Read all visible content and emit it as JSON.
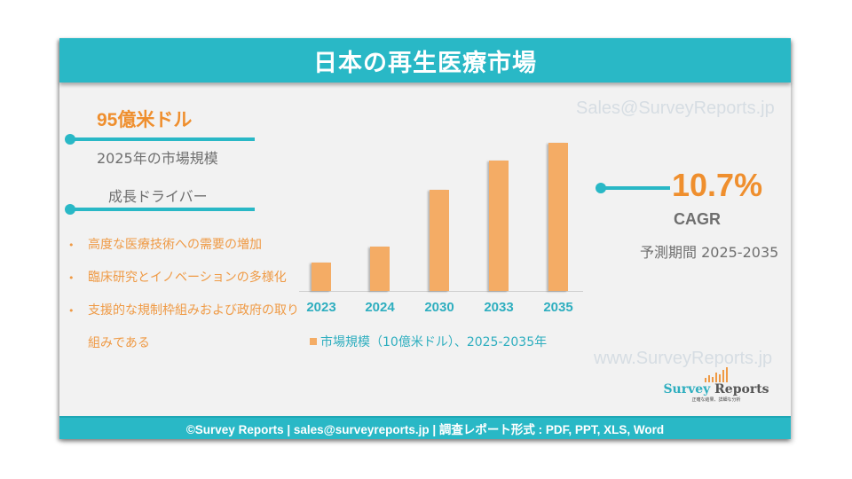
{
  "header": {
    "title": "日本の再生医療市場"
  },
  "watermarks": {
    "email": "Sales@SurveyReports.jp",
    "website": "www.SurveyReports.jp"
  },
  "market_size": {
    "value": "95億米ドル",
    "label": "2025年の市場規模"
  },
  "growth_drivers": {
    "title": "成長ドライバー",
    "items": [
      "高度な医療技術への需要の増加",
      "臨床研究とイノベーションの多様化",
      "支援的な規制枠組みおよび政府の取り組みである"
    ]
  },
  "cagr": {
    "value": "10.7%",
    "label": "CAGR",
    "period": "予測期間 2025-2035"
  },
  "logo": {
    "name_part1": "Survey",
    "name_part2": "Reports",
    "tagline": "正確な結果、詳細な分析"
  },
  "footer": {
    "text": "©Survey Reports | sales@surveyreports.jp |  調査レポート形式 : PDF, PPT, XLS, Word"
  },
  "colors": {
    "accent_teal": "#29b8c6",
    "accent_orange": "#ef8f2e",
    "bar_orange": "#f4ac65",
    "background": "#f2f2f2"
  },
  "chart_data": {
    "type": "bar",
    "title": "",
    "categories": [
      "2023",
      "2024",
      "2030",
      "2033",
      "2035"
    ],
    "series": [
      {
        "name": "市場規模（10億米ドル）、2025-2035年",
        "values": [
          5.0,
          7.9,
          18.0,
          23.1,
          26.3
        ]
      }
    ],
    "xlabel": "",
    "ylabel": "",
    "ylim": [
      0,
      28
    ],
    "grid": false,
    "legend_position": "bottom",
    "legend": [
      "市場規模（10億米ドル）、2025-2035年"
    ]
  }
}
